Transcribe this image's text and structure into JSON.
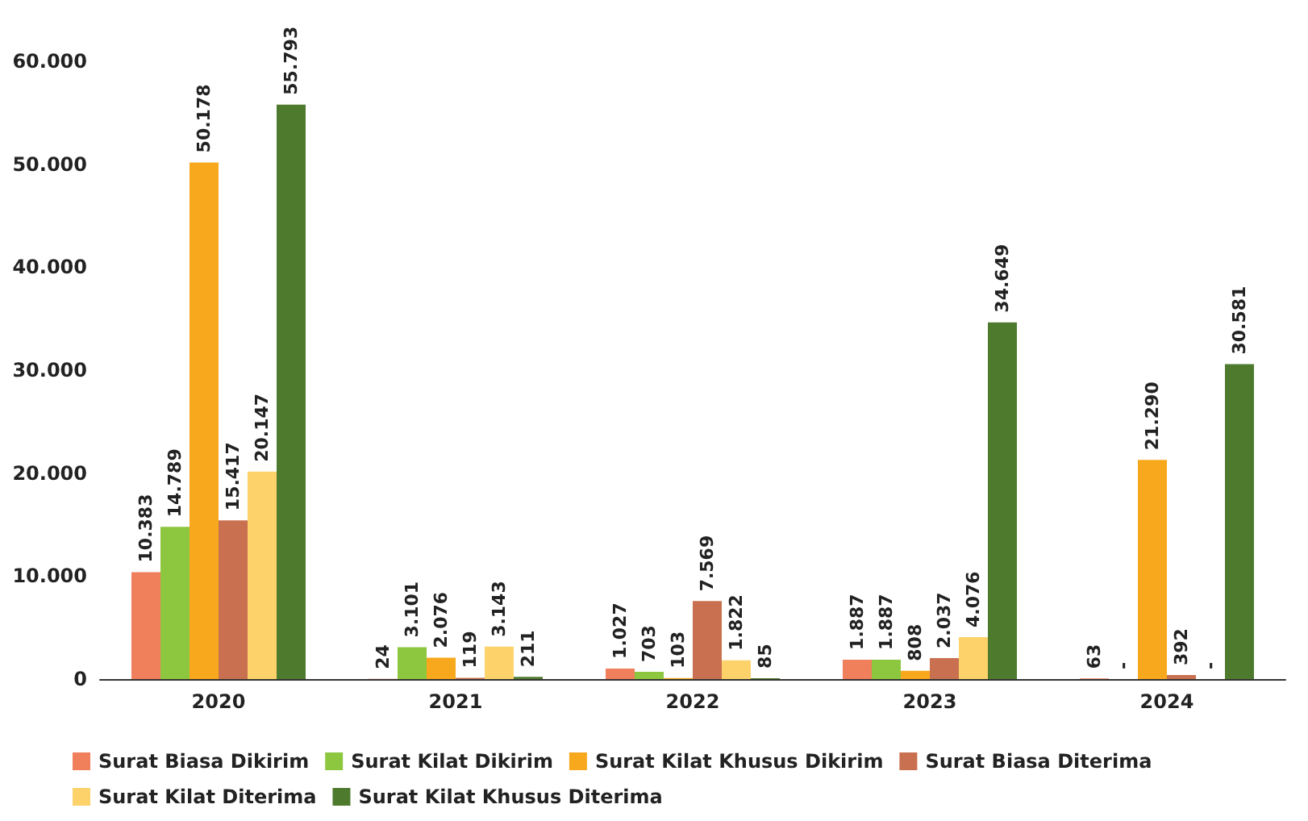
{
  "chart_data": {
    "type": "bar",
    "categories": [
      "2020",
      "2021",
      "2022",
      "2023",
      "2024"
    ],
    "series": [
      {
        "name": "Surat Biasa Dikirim",
        "color": "#f07f5c",
        "values": [
          10383,
          24,
          1027,
          1887,
          63
        ],
        "value_labels": [
          "10.383",
          "24",
          "1.027",
          "1.887",
          "63"
        ]
      },
      {
        "name": "Surat Kilat Dikirim",
        "color": "#8dc63f",
        "values": [
          14789,
          3101,
          703,
          1887,
          null
        ],
        "value_labels": [
          "14.789",
          "3.101",
          "703",
          "1.887",
          "-"
        ]
      },
      {
        "name": "Surat Kilat Khusus Dikirim",
        "color": "#f8a81d",
        "values": [
          50178,
          2076,
          103,
          808,
          21290
        ],
        "value_labels": [
          "50.178",
          "2.076",
          "103",
          "808",
          "21.290"
        ]
      },
      {
        "name": "Surat Biasa Diterima",
        "color": "#c8704f",
        "values": [
          15417,
          119,
          7569,
          2037,
          392
        ],
        "value_labels": [
          "15.417",
          "119",
          "7.569",
          "2.037",
          "392"
        ]
      },
      {
        "name": "Surat Kilat Diterima",
        "color": "#fdd26b",
        "values": [
          20147,
          3143,
          1822,
          4076,
          null
        ],
        "value_labels": [
          "20.147",
          "3.143",
          "1.822",
          "4.076",
          "-"
        ]
      },
      {
        "name": "Surat Kilat Khusus Diterima",
        "color": "#4e7a2e",
        "values": [
          55793,
          211,
          85,
          34649,
          30581
        ],
        "value_labels": [
          "55.793",
          "211",
          "85",
          "34.649",
          "30.581"
        ]
      }
    ],
    "ylim": [
      0,
      60000
    ],
    "yticks": [
      {
        "value": 0,
        "label": "0"
      },
      {
        "value": 10000,
        "label": "10.000"
      },
      {
        "value": 20000,
        "label": "20.000"
      },
      {
        "value": 30000,
        "label": "30.000"
      },
      {
        "value": 40000,
        "label": "40.000"
      },
      {
        "value": 50000,
        "label": "50.000"
      },
      {
        "value": 60000,
        "label": "60.000"
      }
    ],
    "grid": false,
    "legend": "bottom"
  }
}
